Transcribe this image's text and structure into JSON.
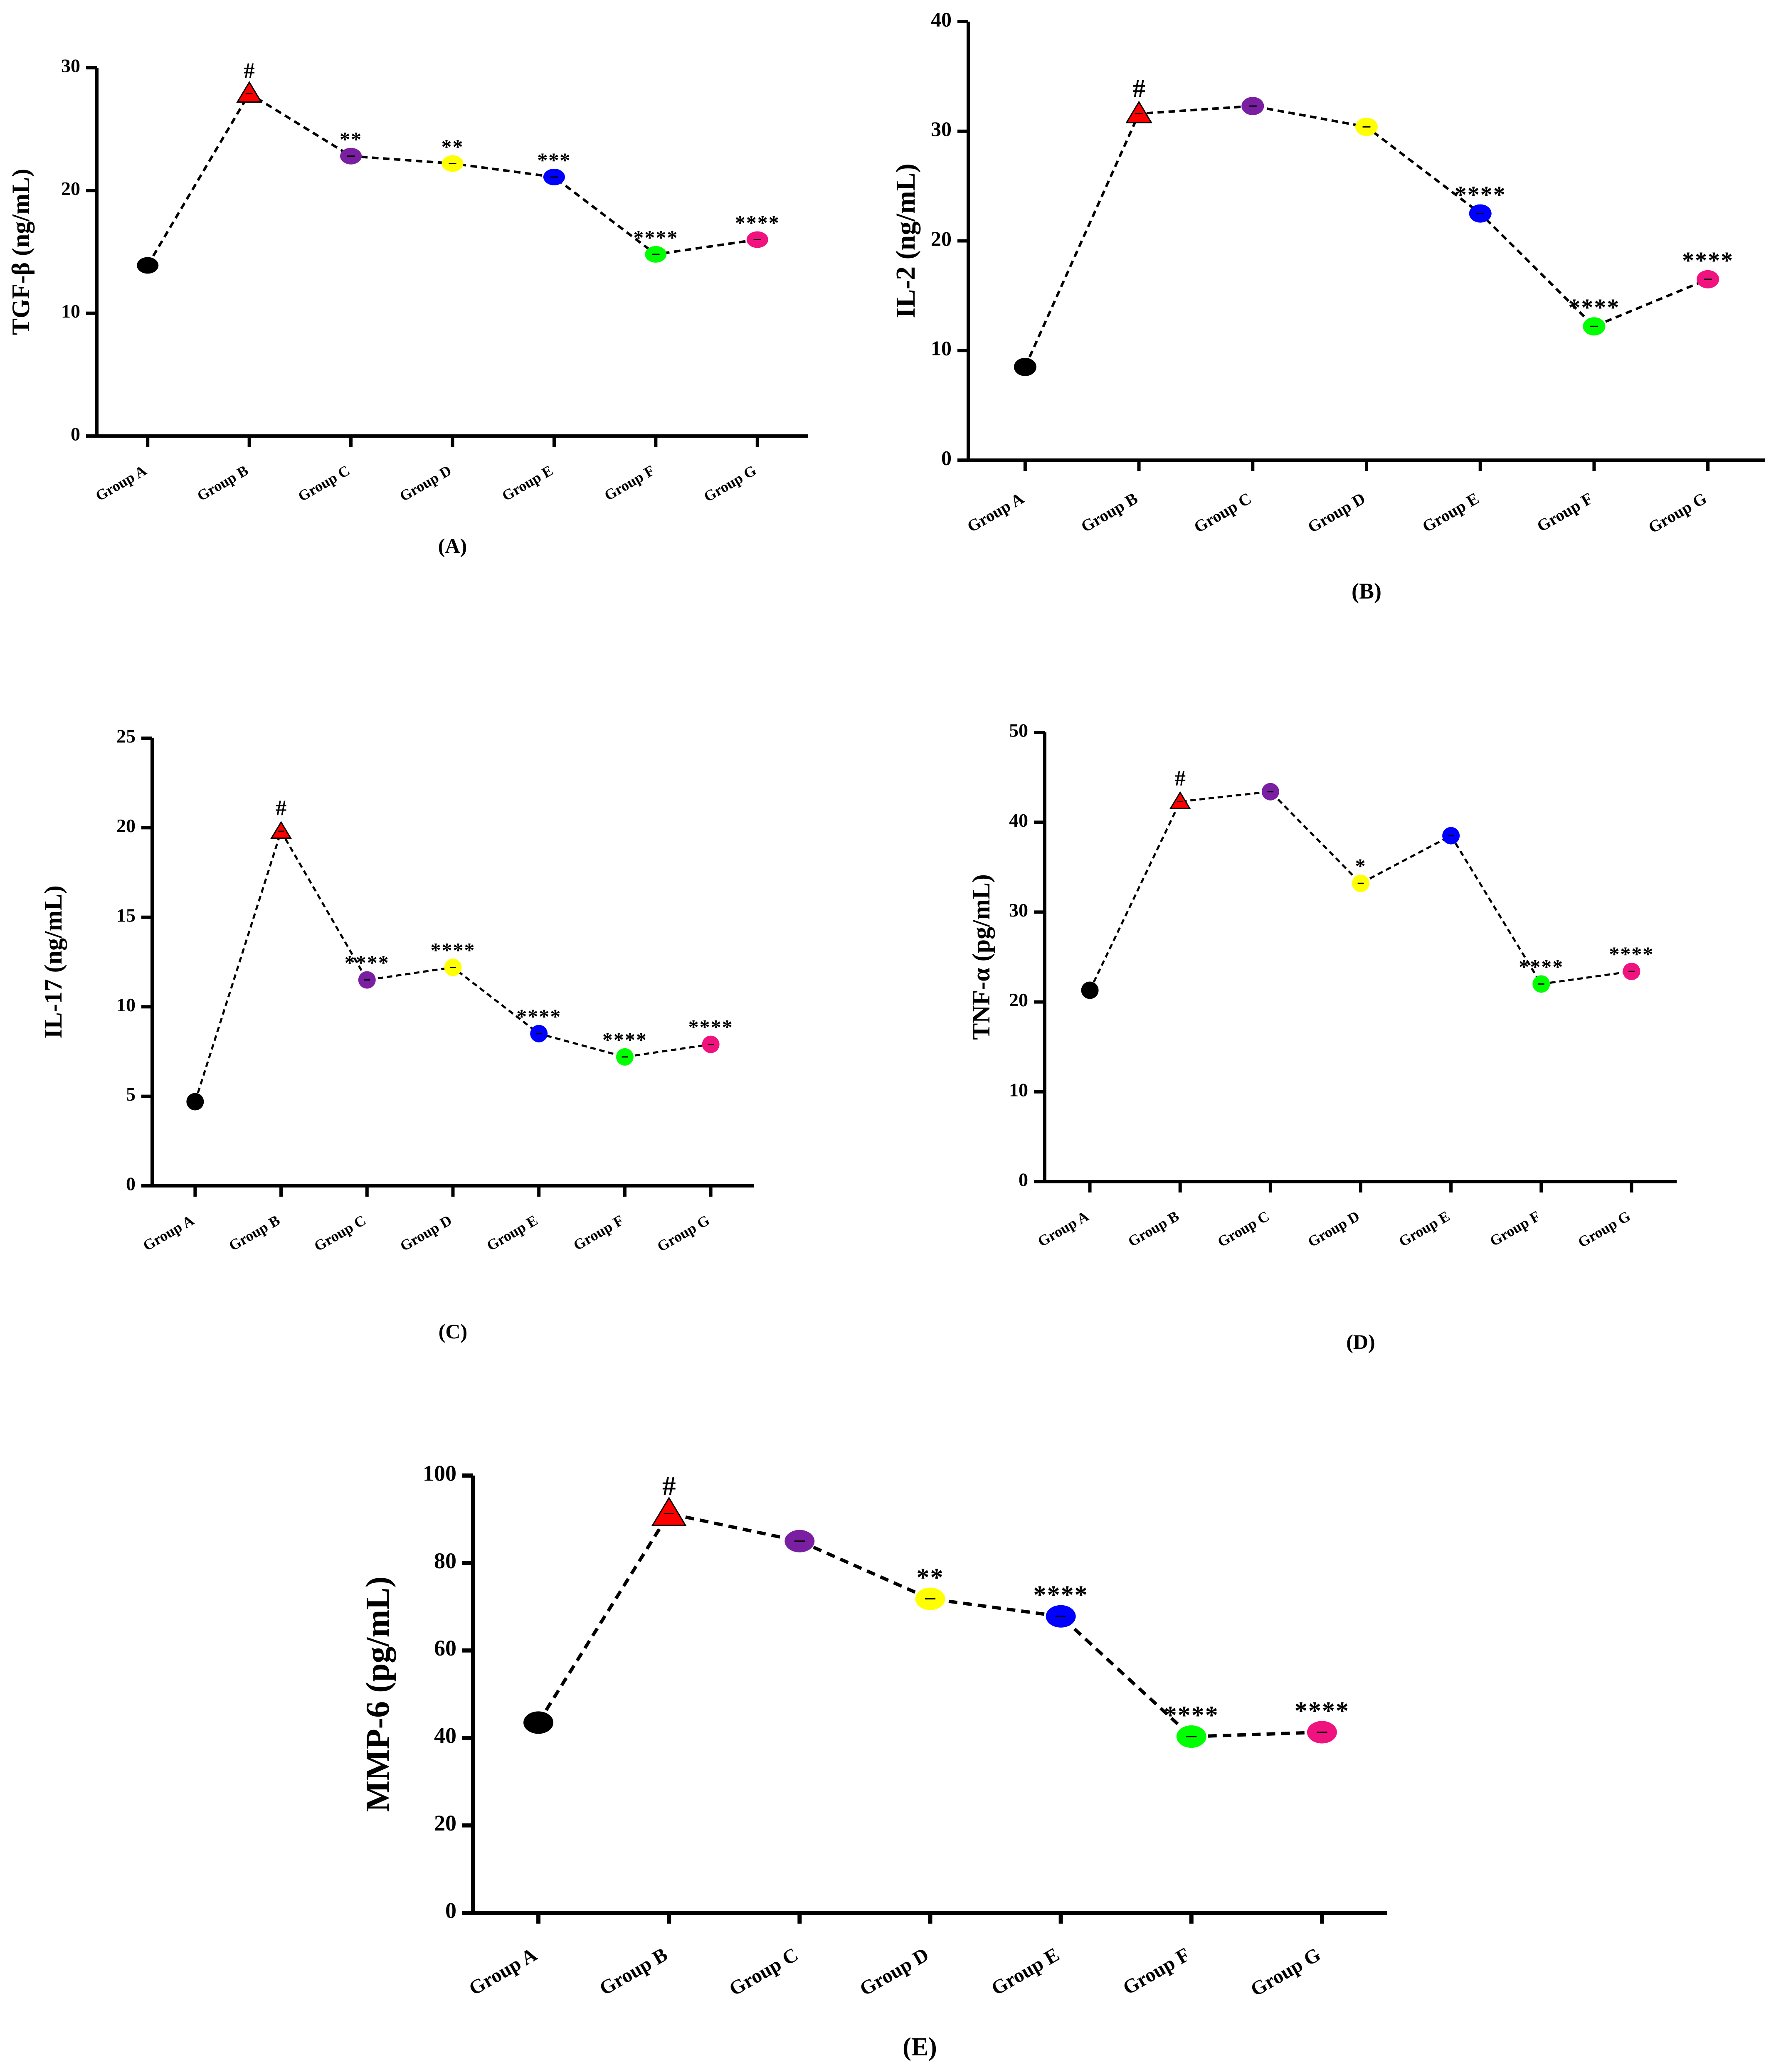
{
  "colors": {
    "axis": "#000000",
    "line": "#000000",
    "markers": [
      "#000000",
      "#ff0000",
      "#7a1fa2",
      "#ffff00",
      "#0000ff",
      "#00ff00",
      "#f0127f"
    ]
  },
  "chart_data": [
    {
      "type": "line",
      "panel_label": "(A)",
      "title": "",
      "xlabel": "",
      "ylabel": "TGF-β (ng/mL)",
      "categories": [
        "Group A",
        "Group B",
        "Group C",
        "Group D",
        "Group E",
        "Group F",
        "Group G"
      ],
      "values": [
        13.9,
        27.9,
        22.8,
        22.2,
        21.1,
        14.8,
        16.0
      ],
      "annotations": [
        "",
        "#",
        "**",
        "**",
        "***",
        "****",
        "****"
      ],
      "ylim": [
        0,
        30
      ],
      "yticks": [
        "0",
        "10",
        "20",
        "30"
      ]
    },
    {
      "type": "line",
      "panel_label": "(B)",
      "title": "",
      "xlabel": "",
      "ylabel": "IL-2 (ng/mL)",
      "categories": [
        "Group A",
        "Group B",
        "Group C",
        "Group D",
        "Group E",
        "Group F",
        "Group G"
      ],
      "values": [
        8.5,
        31.6,
        32.3,
        30.4,
        22.5,
        12.2,
        16.5
      ],
      "annotations": [
        "",
        "#",
        "",
        "",
        "****",
        "****",
        "****"
      ],
      "ylim": [
        0,
        40
      ],
      "yticks": [
        "0",
        "10",
        "20",
        "30",
        "40"
      ]
    },
    {
      "type": "line",
      "panel_label": "(C)",
      "title": "",
      "xlabel": "",
      "ylabel": "IL-17 (ng/mL)",
      "categories": [
        "Group A",
        "Group B",
        "Group C",
        "Group D",
        "Group E",
        "Group F",
        "Group G"
      ],
      "values": [
        4.7,
        19.8,
        11.5,
        12.2,
        8.5,
        7.2,
        7.9
      ],
      "annotations": [
        "",
        "#",
        "****",
        "****",
        "****",
        "****",
        "****"
      ],
      "ylim": [
        0,
        25
      ],
      "yticks": [
        "0",
        "5",
        "10",
        "15",
        "20",
        "25"
      ]
    },
    {
      "type": "line",
      "panel_label": "(D)",
      "title": "",
      "xlabel": "",
      "ylabel": "TNF-α (pg/mL)",
      "categories": [
        "Group A",
        "Group B",
        "Group C",
        "Group D",
        "Group E",
        "Group F",
        "Group G"
      ],
      "values": [
        21.3,
        42.3,
        43.4,
        33.2,
        38.5,
        22.0,
        23.4
      ],
      "annotations": [
        "",
        "#",
        "",
        "*",
        "",
        "****",
        "****"
      ],
      "ylim": [
        0,
        50
      ],
      "yticks": [
        "0",
        "10",
        "20",
        "30",
        "40",
        "50"
      ]
    },
    {
      "type": "line",
      "panel_label": "(E)",
      "title": "",
      "xlabel": "",
      "ylabel": "MMP-6 (pg/mL)",
      "categories": [
        "Group A",
        "Group B",
        "Group C",
        "Group D",
        "Group E",
        "Group F",
        "Group G"
      ],
      "values": [
        43.5,
        91.3,
        85.0,
        71.8,
        67.8,
        40.3,
        41.3
      ],
      "annotations": [
        "",
        "#",
        "",
        "**",
        "****",
        "****",
        "****"
      ],
      "ylim": [
        0,
        100
      ],
      "yticks": [
        "0",
        "20",
        "40",
        "60",
        "80",
        "100"
      ]
    }
  ]
}
